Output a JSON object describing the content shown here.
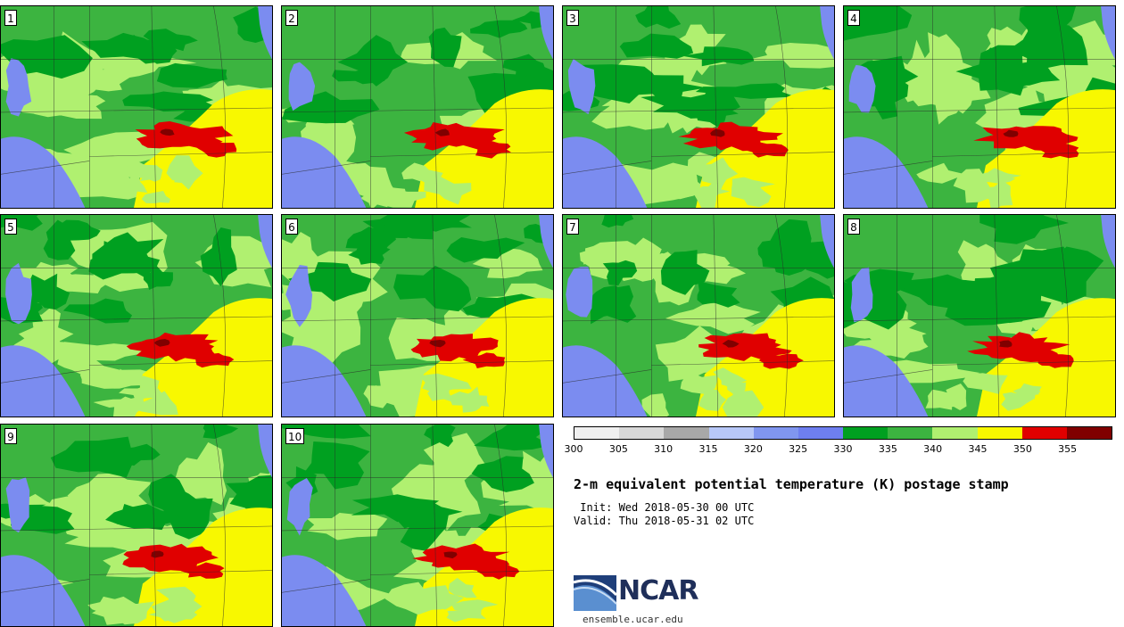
{
  "panels": [
    {
      "label": "1"
    },
    {
      "label": "2"
    },
    {
      "label": "3"
    },
    {
      "label": "4"
    },
    {
      "label": "5"
    },
    {
      "label": "6"
    },
    {
      "label": "7"
    },
    {
      "label": "8"
    },
    {
      "label": "9"
    },
    {
      "label": "10"
    }
  ],
  "colorbar": {
    "colors": [
      "#f0f0f0",
      "#d8d8d8",
      "#a8a8a8",
      "#b8c8f8",
      "#8096f0",
      "#6e7ff0",
      "#00a020",
      "#3cb440",
      "#b0f070",
      "#f8f800",
      "#e00000",
      "#800000"
    ],
    "ticks": [
      "300",
      "305",
      "310",
      "315",
      "320",
      "325",
      "330",
      "335",
      "340",
      "345",
      "350",
      "355"
    ]
  },
  "title": "2-m equivalent potential temperature (K) postage stamp",
  "init": " Init: Wed 2018-05-30 00 UTC",
  "valid": "Valid: Thu 2018-05-31 02 UTC",
  "logo": {
    "text": "NCAR",
    "url": "ensemble.ucar.edu"
  }
}
